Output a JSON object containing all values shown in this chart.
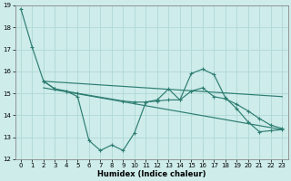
{
  "xlabel": "Humidex (Indice chaleur)",
  "xlim": [
    -0.5,
    23.5
  ],
  "ylim": [
    12,
    19
  ],
  "yticks": [
    12,
    13,
    14,
    15,
    16,
    17,
    18,
    19
  ],
  "xticks": [
    0,
    1,
    2,
    3,
    4,
    5,
    6,
    7,
    8,
    9,
    10,
    11,
    12,
    13,
    14,
    15,
    16,
    17,
    18,
    19,
    20,
    21,
    22,
    23
  ],
  "bg_color": "#cdecea",
  "grid_color": "#b0d8d5",
  "line_color": "#2e7d72",
  "line1_x": [
    0,
    1,
    2,
    3,
    4,
    5,
    6,
    7,
    8,
    9,
    10,
    11,
    12,
    13,
    14,
    15,
    16,
    17,
    18,
    19,
    20,
    21,
    22,
    23
  ],
  "line1_y": [
    18.85,
    17.1,
    15.55,
    15.2,
    15.1,
    14.85,
    12.85,
    12.4,
    12.65,
    12.4,
    13.2,
    14.6,
    14.7,
    15.2,
    14.7,
    15.9,
    16.1,
    15.85,
    14.8,
    14.3,
    13.7,
    13.25,
    13.3,
    13.35
  ],
  "line2_x": [
    2,
    3,
    4,
    5,
    9,
    10,
    11,
    12,
    13,
    14,
    15,
    16,
    17,
    18,
    19,
    20,
    21,
    22,
    23
  ],
  "line2_y": [
    15.55,
    15.2,
    15.1,
    15.0,
    14.65,
    14.6,
    14.6,
    14.65,
    14.7,
    14.7,
    15.1,
    15.25,
    14.85,
    14.75,
    14.5,
    14.2,
    13.85,
    13.55,
    13.4
  ],
  "trend1_x": [
    2,
    23
  ],
  "trend1_y": [
    15.55,
    14.85
  ],
  "trend2_x": [
    2,
    23
  ],
  "trend2_y": [
    15.25,
    13.35
  ]
}
